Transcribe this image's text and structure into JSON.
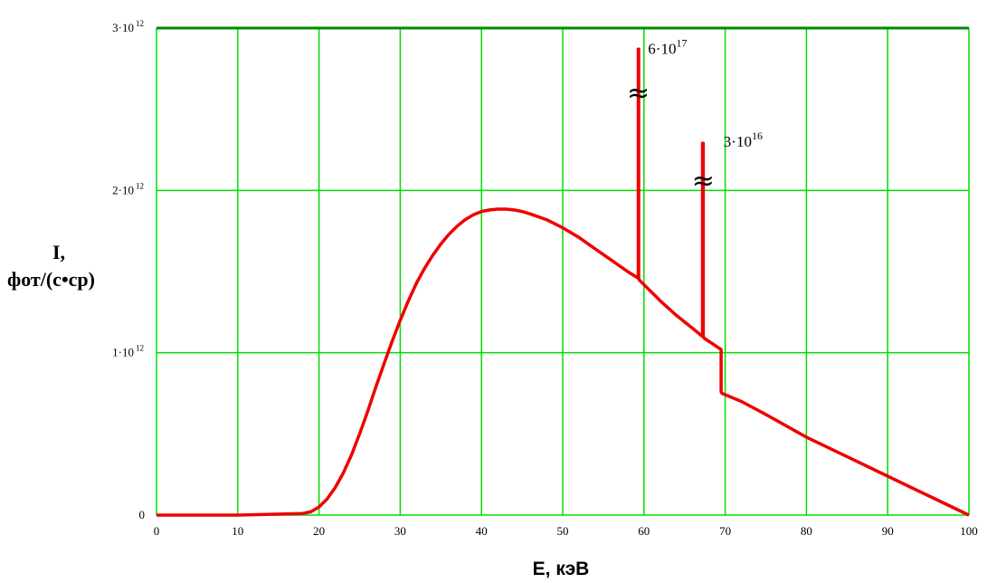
{
  "chart_data": {
    "type": "line",
    "xlabel": "E, кэВ",
    "ylabel_line1": "I,",
    "ylabel_line2": "фот/(с•ср)",
    "xlim": [
      0,
      100
    ],
    "ylim": [
      0,
      3000000000000.0
    ],
    "x_ticks": [
      "0",
      "10",
      "20",
      "30",
      "40",
      "50",
      "60",
      "70",
      "80",
      "90",
      "100"
    ],
    "y_ticks": [
      {
        "value": 0,
        "mantissa": "0",
        "exponent": ""
      },
      {
        "value": 1000000000000.0,
        "mantissa": "1·10",
        "exponent": "12"
      },
      {
        "value": 2000000000000.0,
        "mantissa": "2·10",
        "exponent": "12"
      },
      {
        "value": 3000000000000.0,
        "mantissa": "3·10",
        "exponent": "12"
      }
    ],
    "grid": true,
    "colors": {
      "grid": "#00dd00",
      "line": "#ee0000",
      "top_border": "#008800"
    },
    "series": [
      {
        "x": [
          0,
          10,
          18,
          19,
          20,
          21,
          22,
          23,
          24,
          25,
          26,
          27,
          28,
          29,
          30,
          31,
          32,
          33,
          34,
          35,
          36,
          37,
          38,
          39,
          40,
          41,
          42,
          43,
          44,
          45,
          46,
          48,
          50,
          52,
          54,
          56,
          58,
          59.3,
          59.3,
          59.35,
          59.35,
          59.4,
          62,
          64,
          66,
          67.2,
          67.2,
          67.3,
          67.3,
          67.4,
          69.5,
          69.5,
          69.6,
          72,
          75,
          80,
          85,
          90,
          95,
          100
        ],
        "y": [
          0,
          0,
          10000000000.0,
          20000000000.0,
          50000000000.0,
          100000000000.0,
          170000000000.0,
          260000000000.0,
          370000000000.0,
          500000000000.0,
          640000000000.0,
          790000000000.0,
          930000000000.0,
          1070000000000.0,
          1200000000000.0,
          1320000000000.0,
          1430000000000.0,
          1520000000000.0,
          1600000000000.0,
          1670000000000.0,
          1730000000000.0,
          1780000000000.0,
          1820000000000.0,
          1850000000000.0,
          1870000000000.0,
          1880000000000.0,
          1885000000000.0,
          1885000000000.0,
          1880000000000.0,
          1870000000000.0,
          1855000000000.0,
          1820000000000.0,
          1770000000000.0,
          1710000000000.0,
          1640000000000.0,
          1570000000000.0,
          1500000000000.0,
          1460000000000.0,
          2870000000000.0,
          2870000000000.0,
          1460000000000.0,
          1450000000000.0,
          1320000000000.0,
          1230000000000.0,
          1150000000000.0,
          1100000000000.0,
          2290000000000.0,
          2290000000000.0,
          1100000000000.0,
          1090000000000.0,
          1020000000000.0,
          760000000000.0,
          750000000000.0,
          700000000000.0,
          620000000000.0,
          480000000000.0,
          360000000000.0,
          240000000000.0,
          120000000000.0,
          0
        ]
      }
    ],
    "annotations": [
      {
        "mantissa": "6·10",
        "exponent": "17",
        "x": 60.5,
        "y": 2840000000000.0
      },
      {
        "mantissa": "3·10",
        "exponent": "16",
        "x": 69.8,
        "y": 2270000000000.0
      }
    ],
    "axis_breaks": [
      {
        "symbol": "≈",
        "x": 59.3,
        "y": 2600000000000.0
      },
      {
        "symbol": "≈",
        "x": 67.3,
        "y": 2060000000000.0
      }
    ]
  }
}
